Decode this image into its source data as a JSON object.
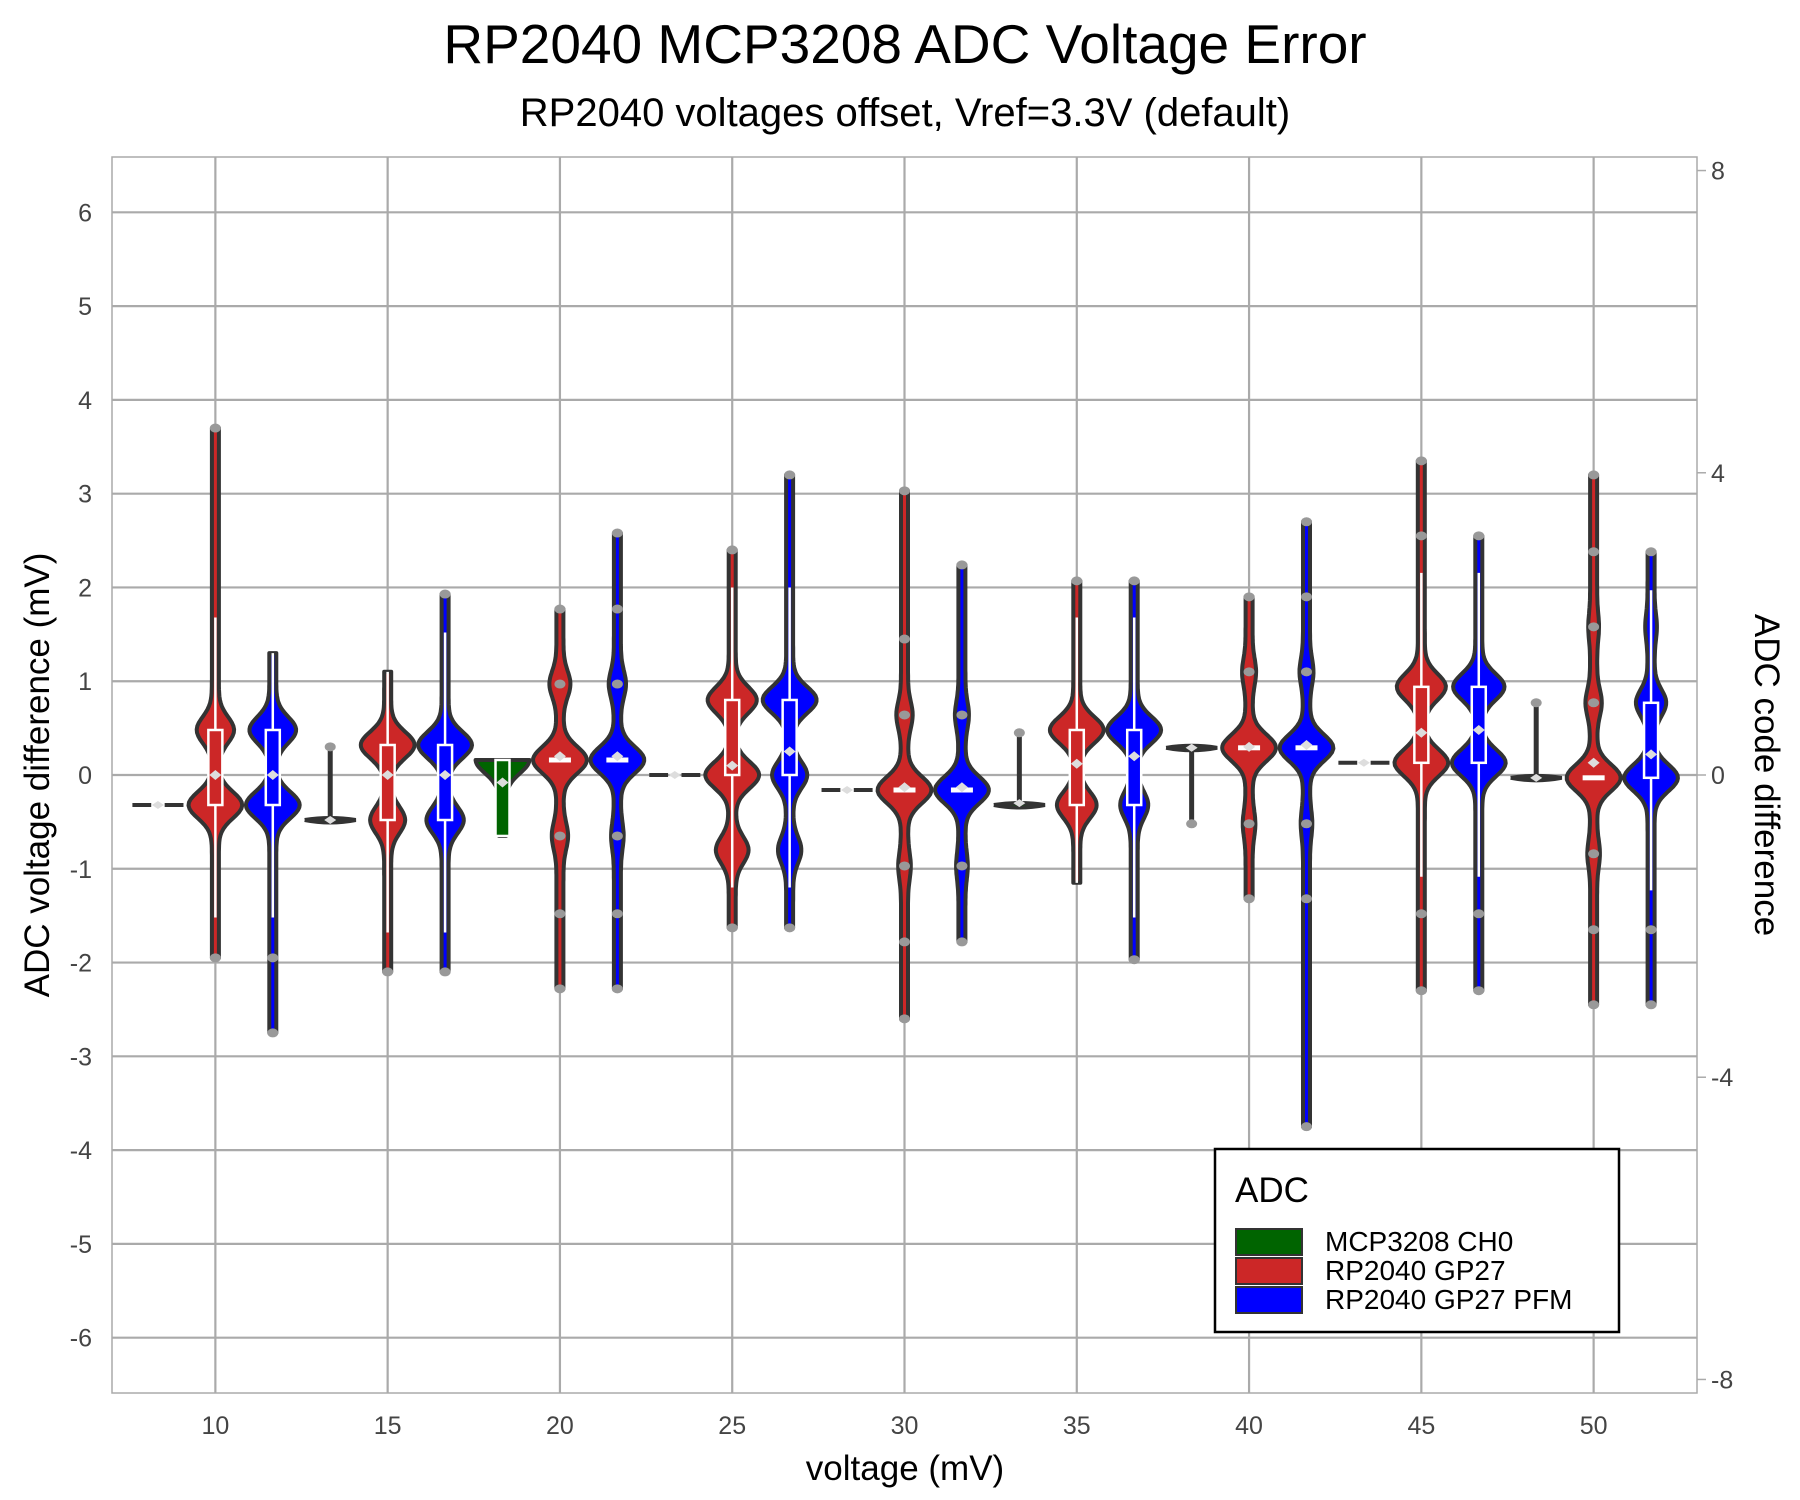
{
  "chart_data": {
    "type": "violin",
    "title": "RP2040 MCP3208 ADC Voltage Error",
    "subtitle": "RP2040 voltages offset, Vref=3.3V (default)",
    "xlabel": "voltage (mV)",
    "ylabel": "ADC voltage difference (mV)",
    "y2label": "ADC code difference",
    "xlim": [
      7,
      53
    ],
    "ylim": [
      -6.59,
      6.59
    ],
    "x_ticks": [
      10,
      15,
      20,
      25,
      30,
      35,
      40,
      45,
      50
    ],
    "y_ticks": [
      6,
      5,
      4,
      3,
      2,
      1,
      0,
      -1,
      -2,
      -3,
      -4,
      -5,
      -6
    ],
    "y2_ticks": [
      8,
      4,
      0,
      -4,
      -8
    ],
    "y2_mV_per_code": 0.8057,
    "grid": true,
    "legend": {
      "title": "ADC",
      "placement": "bottom-right",
      "entries": [
        {
          "name": "MCP3208 CH0",
          "color": "#006400"
        },
        {
          "name": "RP2040 GP27",
          "color": "#CC2727"
        },
        {
          "name": "RP2040 GP27 PFM",
          "color": "#0000FF"
        }
      ]
    },
    "colors": {
      "grid": "#AAAAAA",
      "outline": "#333333",
      "outlier": "#999999",
      "mean": "#DDDDDD"
    },
    "series": [
      {
        "name": "MCP3208 CH0",
        "groups": [
          {
            "x": 10,
            "min": -0.32,
            "max": -0.32,
            "q1": -0.32,
            "q3": -0.32,
            "mean": -0.32,
            "modes": [
              [
                -0.32,
                1
              ]
            ],
            "outliers": []
          },
          {
            "x": 15,
            "min": -0.48,
            "max": 0.3,
            "q1": -0.48,
            "q3": -0.48,
            "mean": -0.48,
            "modes": [
              [
                -0.48,
                1
              ]
            ],
            "outliers": [
              0.3
            ]
          },
          {
            "x": 20,
            "min": -0.65,
            "max": 0.16,
            "q1": -0.65,
            "q3": 0.16,
            "mean": -0.08,
            "modes": [
              [
                0.16,
                1
              ]
            ],
            "outliers": [],
            "box_filled": true
          },
          {
            "x": 25,
            "min": -0.0,
            "max": -0.0,
            "q1": 0,
            "q3": 0,
            "mean": 0,
            "modes": [
              [
                0,
                1
              ]
            ],
            "outliers": []
          },
          {
            "x": 30,
            "min": -0.16,
            "max": -0.16,
            "q1": -0.16,
            "q3": -0.16,
            "mean": -0.16,
            "modes": [
              [
                -0.16,
                1
              ]
            ],
            "outliers": []
          },
          {
            "x": 35,
            "min": -0.32,
            "max": 0.45,
            "q1": -0.32,
            "q3": -0.32,
            "mean": -0.3,
            "modes": [
              [
                -0.32,
                1
              ]
            ],
            "outliers": [
              0.45
            ]
          },
          {
            "x": 40,
            "min": -0.52,
            "max": 0.29,
            "q1": 0.29,
            "q3": 0.29,
            "mean": 0.29,
            "modes": [
              [
                0.29,
                1
              ]
            ],
            "outliers": [
              -0.52
            ]
          },
          {
            "x": 45,
            "min": 0.13,
            "max": 0.13,
            "q1": 0.13,
            "q3": 0.13,
            "mean": 0.13,
            "modes": [
              [
                0.13,
                1
              ]
            ],
            "outliers": []
          },
          {
            "x": 50,
            "min": -0.03,
            "max": 0.77,
            "q1": -0.03,
            "q3": -0.03,
            "mean": -0.03,
            "modes": [
              [
                -0.03,
                1
              ]
            ],
            "outliers": [
              0.77
            ]
          }
        ]
      },
      {
        "name": "RP2040 GP27",
        "groups": [
          {
            "x": 10,
            "min": -1.95,
            "max": 3.7,
            "q1": -0.32,
            "q3": 0.48,
            "mean": 0.0,
            "modes": [
              [
                -0.32,
                1
              ],
              [
                0.48,
                0.65
              ]
            ],
            "outliers": [
              3.7,
              -1.95
            ]
          },
          {
            "x": 15,
            "min": -2.1,
            "max": 1.1,
            "q1": -0.48,
            "q3": 0.32,
            "mean": 0.0,
            "modes": [
              [
                0.32,
                1
              ],
              [
                -0.48,
                0.6
              ]
            ],
            "outliers": [
              -2.1
            ]
          },
          {
            "x": 20,
            "min": -2.28,
            "max": 1.77,
            "q1": 0.16,
            "q3": 0.16,
            "mean": 0.2,
            "modes": [
              [
                0.16,
                1
              ],
              [
                0.97,
                0.3
              ],
              [
                -0.65,
                0.2
              ]
            ],
            "outliers": [
              1.77,
              0.97,
              -0.65,
              -1.48,
              -2.28
            ]
          },
          {
            "x": 25,
            "min": -1.63,
            "max": 2.4,
            "q1": 0.0,
            "q3": 0.8,
            "mean": 0.1,
            "modes": [
              [
                0.8,
                0.9
              ],
              [
                0.0,
                1
              ],
              [
                -0.8,
                0.55
              ]
            ],
            "outliers": [
              2.4,
              -1.63
            ]
          },
          {
            "x": 30,
            "min": -2.6,
            "max": 3.03,
            "q1": -0.16,
            "q3": -0.16,
            "mean": -0.13,
            "modes": [
              [
                -0.16,
                1
              ],
              [
                0.64,
                0.2
              ],
              [
                -0.97,
                0.12
              ]
            ],
            "outliers": [
              3.03,
              1.45,
              0.64,
              -0.97,
              -1.78,
              -2.6
            ]
          },
          {
            "x": 35,
            "min": -1.15,
            "max": 2.07,
            "q1": -0.32,
            "q3": 0.48,
            "mean": 0.12,
            "modes": [
              [
                0.48,
                1
              ],
              [
                -0.32,
                0.7
              ]
            ],
            "outliers": [
              2.07
            ]
          },
          {
            "x": 40,
            "min": -1.32,
            "max": 1.9,
            "q1": 0.29,
            "q3": 0.29,
            "mean": 0.3,
            "modes": [
              [
                0.29,
                1
              ],
              [
                1.1,
                0.15
              ],
              [
                -0.52,
                0.12
              ]
            ],
            "outliers": [
              1.9,
              1.1,
              -0.52,
              -1.32
            ]
          },
          {
            "x": 45,
            "min": -2.3,
            "max": 3.35,
            "q1": 0.13,
            "q3": 0.94,
            "mean": 0.45,
            "modes": [
              [
                0.94,
                0.9
              ],
              [
                0.13,
                1
              ]
            ],
            "outliers": [
              3.35,
              2.55,
              -1.48,
              -2.3
            ]
          },
          {
            "x": 50,
            "min": -2.45,
            "max": 3.2,
            "q1": -0.03,
            "q3": -0.03,
            "mean": 0.13,
            "modes": [
              [
                -0.03,
                1
              ],
              [
                0.77,
                0.2
              ],
              [
                -0.84,
                0.12
              ],
              [
                1.58,
                0.08
              ]
            ],
            "outliers": [
              3.2,
              2.38,
              1.58,
              0.77,
              -0.84,
              -1.65,
              -2.45
            ]
          }
        ]
      },
      {
        "name": "RP2040 GP27 PFM",
        "groups": [
          {
            "x": 10,
            "min": -2.75,
            "max": 1.3,
            "q1": -0.32,
            "q3": 0.48,
            "mean": 0.0,
            "modes": [
              [
                0.48,
                0.85
              ],
              [
                -0.32,
                1
              ]
            ],
            "outliers": [
              -1.95,
              -2.75
            ]
          },
          {
            "x": 15,
            "min": -2.1,
            "max": 1.93,
            "q1": -0.48,
            "q3": 0.32,
            "mean": 0.0,
            "modes": [
              [
                0.32,
                1
              ],
              [
                -0.48,
                0.65
              ]
            ],
            "outliers": [
              1.93,
              -2.1
            ]
          },
          {
            "x": 20,
            "min": -2.28,
            "max": 2.58,
            "q1": 0.16,
            "q3": 0.16,
            "mean": 0.2,
            "modes": [
              [
                0.16,
                1
              ],
              [
                0.97,
                0.22
              ],
              [
                -0.65,
                0.12
              ]
            ],
            "outliers": [
              2.58,
              1.77,
              0.97,
              -0.65,
              -1.48,
              -2.28
            ]
          },
          {
            "x": 25,
            "min": -1.63,
            "max": 3.2,
            "q1": 0.0,
            "q3": 0.8,
            "mean": 0.25,
            "modes": [
              [
                0.8,
                1
              ],
              [
                0.0,
                0.6
              ],
              [
                -0.8,
                0.35
              ]
            ],
            "outliers": [
              3.2,
              -1.63
            ]
          },
          {
            "x": 30,
            "min": -1.78,
            "max": 2.24,
            "q1": -0.16,
            "q3": -0.16,
            "mean": -0.13,
            "modes": [
              [
                -0.16,
                1
              ],
              [
                0.64,
                0.15
              ],
              [
                -0.97,
                0.1
              ]
            ],
            "outliers": [
              2.24,
              0.64,
              -0.97,
              -1.78
            ]
          },
          {
            "x": 35,
            "min": -1.97,
            "max": 2.07,
            "q1": -0.32,
            "q3": 0.48,
            "mean": 0.2,
            "modes": [
              [
                0.48,
                1
              ],
              [
                -0.32,
                0.45
              ]
            ],
            "outliers": [
              2.07,
              -1.97
            ]
          },
          {
            "x": 40,
            "min": -3.75,
            "max": 2.7,
            "q1": 0.29,
            "q3": 0.29,
            "mean": 0.32,
            "modes": [
              [
                0.29,
                1
              ],
              [
                1.1,
                0.15
              ],
              [
                -0.52,
                0.1
              ]
            ],
            "outliers": [
              2.7,
              1.9,
              1.1,
              -0.52,
              -1.32,
              -3.75
            ]
          },
          {
            "x": 45,
            "min": -2.3,
            "max": 2.55,
            "q1": 0.13,
            "q3": 0.94,
            "mean": 0.48,
            "modes": [
              [
                0.94,
                0.95
              ],
              [
                0.13,
                1
              ]
            ],
            "outliers": [
              2.55,
              -1.48,
              -2.3
            ]
          },
          {
            "x": 50,
            "min": -2.45,
            "max": 2.38,
            "q1": -0.03,
            "q3": 0.77,
            "mean": 0.22,
            "modes": [
              [
                -0.03,
                1
              ],
              [
                0.77,
                0.5
              ],
              [
                1.58,
                0.1
              ]
            ],
            "outliers": [
              2.38,
              -1.65,
              -2.45
            ]
          }
        ]
      }
    ]
  }
}
